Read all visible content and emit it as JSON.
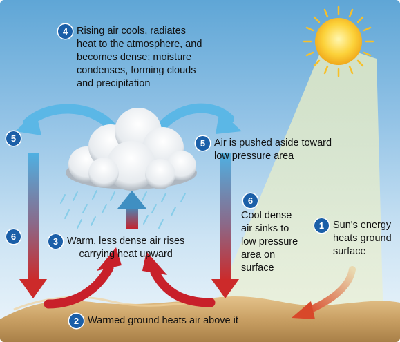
{
  "steps": {
    "s1": {
      "number": "1",
      "text": [
        "Sun's energy",
        "heats ground",
        "surface"
      ]
    },
    "s2": {
      "number": "2",
      "text": [
        "Warmed ground heats air above it"
      ]
    },
    "s3": {
      "number": "3",
      "text": [
        "Warm, less dense air rises",
        "carrying heat upward"
      ]
    },
    "s4": {
      "number": "4",
      "text": [
        "Rising air cools, radiates",
        "heat to the atmosphere, and",
        "becomes dense; moisture",
        "condenses, forming clouds",
        "and precipitation"
      ]
    },
    "s5_left": {
      "number": "5"
    },
    "s5_right": {
      "number": "5",
      "text": [
        "Air is pushed aside toward",
        "low pressure area"
      ]
    },
    "s6_left": {
      "number": "6"
    },
    "s6_right": {
      "number": "6",
      "text": [
        "Cool dense",
        "air sinks to",
        "low pressure",
        "area on",
        "surface"
      ]
    }
  },
  "colors": {
    "badge": "#1b5fa8",
    "warm_arrow": "#c8202a",
    "cool_arrow": "#3fa7dc",
    "ground": "#c9a064",
    "sun": "#f7c02a"
  },
  "icons": {
    "sun": "sun-icon",
    "cloud": "rain-cloud-icon"
  }
}
